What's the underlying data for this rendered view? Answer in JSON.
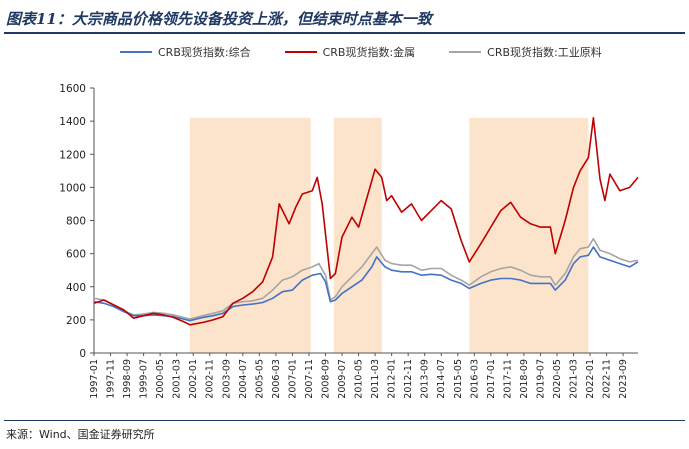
{
  "header": {
    "title": "图表11：大宗商品价格领先设备投资上涨，但结束时点基本一致"
  },
  "footer": {
    "source": "来源：Wind、国金证券研究所"
  },
  "colors": {
    "composite": "#4472c4",
    "metals": "#c00000",
    "industrial": "#a5a5a5",
    "shade": "#fce4cc",
    "title": "#1f3864"
  },
  "chart_data": {
    "type": "line",
    "title": "",
    "xlabel": "",
    "ylabel": "",
    "ylim": [
      0,
      1600
    ],
    "yticks": [
      0,
      200,
      400,
      600,
      800,
      1000,
      1200,
      1400,
      1600
    ],
    "xlim": [
      "1997-01",
      "2024-06"
    ],
    "xtick_labels": [
      "1997-01",
      "1997-11",
      "1998-09",
      "1999-07",
      "2000-05",
      "2001-03",
      "2002-01",
      "2002-11",
      "2003-09",
      "2004-07",
      "2005-05",
      "2006-03",
      "2007-01",
      "2007-11",
      "2008-09",
      "2009-07",
      "2010-05",
      "2011-03",
      "2012-01",
      "2012-11",
      "2013-09",
      "2014-07",
      "2015-05",
      "2016-03",
      "2017-01",
      "2017-11",
      "2018-09",
      "2019-07",
      "2020-05",
      "2021-03",
      "2022-01",
      "2022-11",
      "2023-09"
    ],
    "legend": [
      "CRB现货指数:综合",
      "CRB现货指数:金属",
      "CRB现货指数:工业原料"
    ],
    "legend_position": "top",
    "grid": false,
    "shaded_periods": [
      [
        "2001-11",
        "2007-12"
      ],
      [
        "2009-02",
        "2011-07"
      ],
      [
        "2015-12",
        "2021-12"
      ]
    ],
    "series": [
      {
        "name": "CRB现货指数:综合",
        "color": "#4472c4",
        "points": [
          [
            "1997-01",
            310
          ],
          [
            "1997-07",
            300
          ],
          [
            "1998-01",
            280
          ],
          [
            "1998-07",
            250
          ],
          [
            "1999-01",
            225
          ],
          [
            "1999-07",
            225
          ],
          [
            "2000-01",
            230
          ],
          [
            "2000-07",
            225
          ],
          [
            "2001-01",
            220
          ],
          [
            "2001-07",
            205
          ],
          [
            "2001-11",
            195
          ],
          [
            "2002-07",
            215
          ],
          [
            "2003-01",
            225
          ],
          [
            "2003-07",
            240
          ],
          [
            "2004-01",
            280
          ],
          [
            "2004-07",
            290
          ],
          [
            "2005-01",
            295
          ],
          [
            "2005-07",
            305
          ],
          [
            "2006-01",
            330
          ],
          [
            "2006-07",
            370
          ],
          [
            "2007-01",
            380
          ],
          [
            "2007-07",
            440
          ],
          [
            "2008-01",
            470
          ],
          [
            "2008-06",
            480
          ],
          [
            "2008-09",
            430
          ],
          [
            "2008-12",
            310
          ],
          [
            "2009-03",
            320
          ],
          [
            "2009-07",
            360
          ],
          [
            "2010-01",
            400
          ],
          [
            "2010-07",
            440
          ],
          [
            "2011-01",
            520
          ],
          [
            "2011-04",
            580
          ],
          [
            "2011-09",
            520
          ],
          [
            "2012-01",
            500
          ],
          [
            "2012-07",
            490
          ],
          [
            "2013-01",
            490
          ],
          [
            "2013-07",
            470
          ],
          [
            "2014-01",
            475
          ],
          [
            "2014-07",
            470
          ],
          [
            "2015-01",
            440
          ],
          [
            "2015-07",
            420
          ],
          [
            "2015-12",
            390
          ],
          [
            "2016-07",
            420
          ],
          [
            "2017-01",
            440
          ],
          [
            "2017-07",
            450
          ],
          [
            "2018-01",
            450
          ],
          [
            "2018-07",
            440
          ],
          [
            "2019-01",
            420
          ],
          [
            "2019-07",
            420
          ],
          [
            "2020-01",
            420
          ],
          [
            "2020-04",
            380
          ],
          [
            "2020-10",
            440
          ],
          [
            "2021-03",
            540
          ],
          [
            "2021-07",
            580
          ],
          [
            "2021-12",
            590
          ],
          [
            "2022-03",
            640
          ],
          [
            "2022-07",
            580
          ],
          [
            "2023-01",
            560
          ],
          [
            "2023-07",
            540
          ],
          [
            "2024-01",
            520
          ],
          [
            "2024-06",
            550
          ]
        ]
      },
      {
        "name": "CRB现货指数:金属",
        "color": "#c00000",
        "points": [
          [
            "1997-01",
            300
          ],
          [
            "1997-07",
            320
          ],
          [
            "1998-01",
            290
          ],
          [
            "1998-07",
            260
          ],
          [
            "1999-01",
            210
          ],
          [
            "1999-07",
            225
          ],
          [
            "2000-01",
            240
          ],
          [
            "2000-07",
            230
          ],
          [
            "2001-01",
            215
          ],
          [
            "2001-07",
            190
          ],
          [
            "2001-11",
            170
          ],
          [
            "2002-07",
            185
          ],
          [
            "2003-01",
            200
          ],
          [
            "2003-07",
            220
          ],
          [
            "2004-01",
            300
          ],
          [
            "2004-07",
            330
          ],
          [
            "2005-01",
            370
          ],
          [
            "2005-07",
            430
          ],
          [
            "2006-01",
            580
          ],
          [
            "2006-05",
            900
          ],
          [
            "2006-11",
            780
          ],
          [
            "2007-03",
            880
          ],
          [
            "2007-07",
            960
          ],
          [
            "2008-01",
            980
          ],
          [
            "2008-04",
            1060
          ],
          [
            "2008-07",
            900
          ],
          [
            "2008-12",
            450
          ],
          [
            "2009-03",
            480
          ],
          [
            "2009-07",
            700
          ],
          [
            "2010-01",
            820
          ],
          [
            "2010-05",
            760
          ],
          [
            "2010-09",
            900
          ],
          [
            "2011-03",
            1110
          ],
          [
            "2011-07",
            1060
          ],
          [
            "2011-10",
            920
          ],
          [
            "2012-01",
            950
          ],
          [
            "2012-07",
            850
          ],
          [
            "2013-01",
            900
          ],
          [
            "2013-07",
            800
          ],
          [
            "2014-01",
            860
          ],
          [
            "2014-07",
            920
          ],
          [
            "2015-01",
            870
          ],
          [
            "2015-07",
            680
          ],
          [
            "2015-12",
            550
          ],
          [
            "2016-07",
            660
          ],
          [
            "2017-01",
            760
          ],
          [
            "2017-07",
            860
          ],
          [
            "2018-01",
            910
          ],
          [
            "2018-07",
            820
          ],
          [
            "2019-01",
            780
          ],
          [
            "2019-07",
            760
          ],
          [
            "2020-01",
            760
          ],
          [
            "2020-04",
            600
          ],
          [
            "2020-10",
            800
          ],
          [
            "2021-03",
            1000
          ],
          [
            "2021-07",
            1100
          ],
          [
            "2021-12",
            1180
          ],
          [
            "2022-03",
            1420
          ],
          [
            "2022-07",
            1050
          ],
          [
            "2022-10",
            920
          ],
          [
            "2023-01",
            1080
          ],
          [
            "2023-07",
            980
          ],
          [
            "2024-01",
            1000
          ],
          [
            "2024-06",
            1060
          ]
        ]
      },
      {
        "name": "CRB现货指数:工业原料",
        "color": "#a5a5a5",
        "points": [
          [
            "1997-01",
            330
          ],
          [
            "1997-07",
            320
          ],
          [
            "1998-01",
            290
          ],
          [
            "1998-07",
            255
          ],
          [
            "1999-01",
            230
          ],
          [
            "1999-07",
            235
          ],
          [
            "2000-01",
            245
          ],
          [
            "2000-07",
            240
          ],
          [
            "2001-01",
            230
          ],
          [
            "2001-07",
            215
          ],
          [
            "2001-11",
            205
          ],
          [
            "2002-07",
            225
          ],
          [
            "2003-01",
            240
          ],
          [
            "2003-07",
            255
          ],
          [
            "2004-01",
            300
          ],
          [
            "2004-07",
            310
          ],
          [
            "2005-01",
            315
          ],
          [
            "2005-07",
            330
          ],
          [
            "2006-01",
            380
          ],
          [
            "2006-07",
            440
          ],
          [
            "2007-01",
            460
          ],
          [
            "2007-07",
            500
          ],
          [
            "2008-01",
            520
          ],
          [
            "2008-05",
            540
          ],
          [
            "2008-09",
            470
          ],
          [
            "2008-12",
            320
          ],
          [
            "2009-03",
            340
          ],
          [
            "2009-07",
            400
          ],
          [
            "2010-01",
            460
          ],
          [
            "2010-07",
            520
          ],
          [
            "2011-01",
            600
          ],
          [
            "2011-04",
            640
          ],
          [
            "2011-09",
            560
          ],
          [
            "2012-01",
            540
          ],
          [
            "2012-07",
            530
          ],
          [
            "2013-01",
            530
          ],
          [
            "2013-07",
            500
          ],
          [
            "2014-01",
            510
          ],
          [
            "2014-07",
            510
          ],
          [
            "2015-01",
            470
          ],
          [
            "2015-07",
            440
          ],
          [
            "2015-12",
            410
          ],
          [
            "2016-07",
            460
          ],
          [
            "2017-01",
            490
          ],
          [
            "2017-07",
            510
          ],
          [
            "2018-01",
            520
          ],
          [
            "2018-07",
            500
          ],
          [
            "2019-01",
            470
          ],
          [
            "2019-07",
            460
          ],
          [
            "2020-01",
            460
          ],
          [
            "2020-04",
            410
          ],
          [
            "2020-10",
            480
          ],
          [
            "2021-03",
            580
          ],
          [
            "2021-07",
            630
          ],
          [
            "2021-12",
            640
          ],
          [
            "2022-03",
            690
          ],
          [
            "2022-07",
            620
          ],
          [
            "2023-01",
            600
          ],
          [
            "2023-07",
            570
          ],
          [
            "2024-01",
            550
          ],
          [
            "2024-06",
            560
          ]
        ]
      }
    ]
  }
}
